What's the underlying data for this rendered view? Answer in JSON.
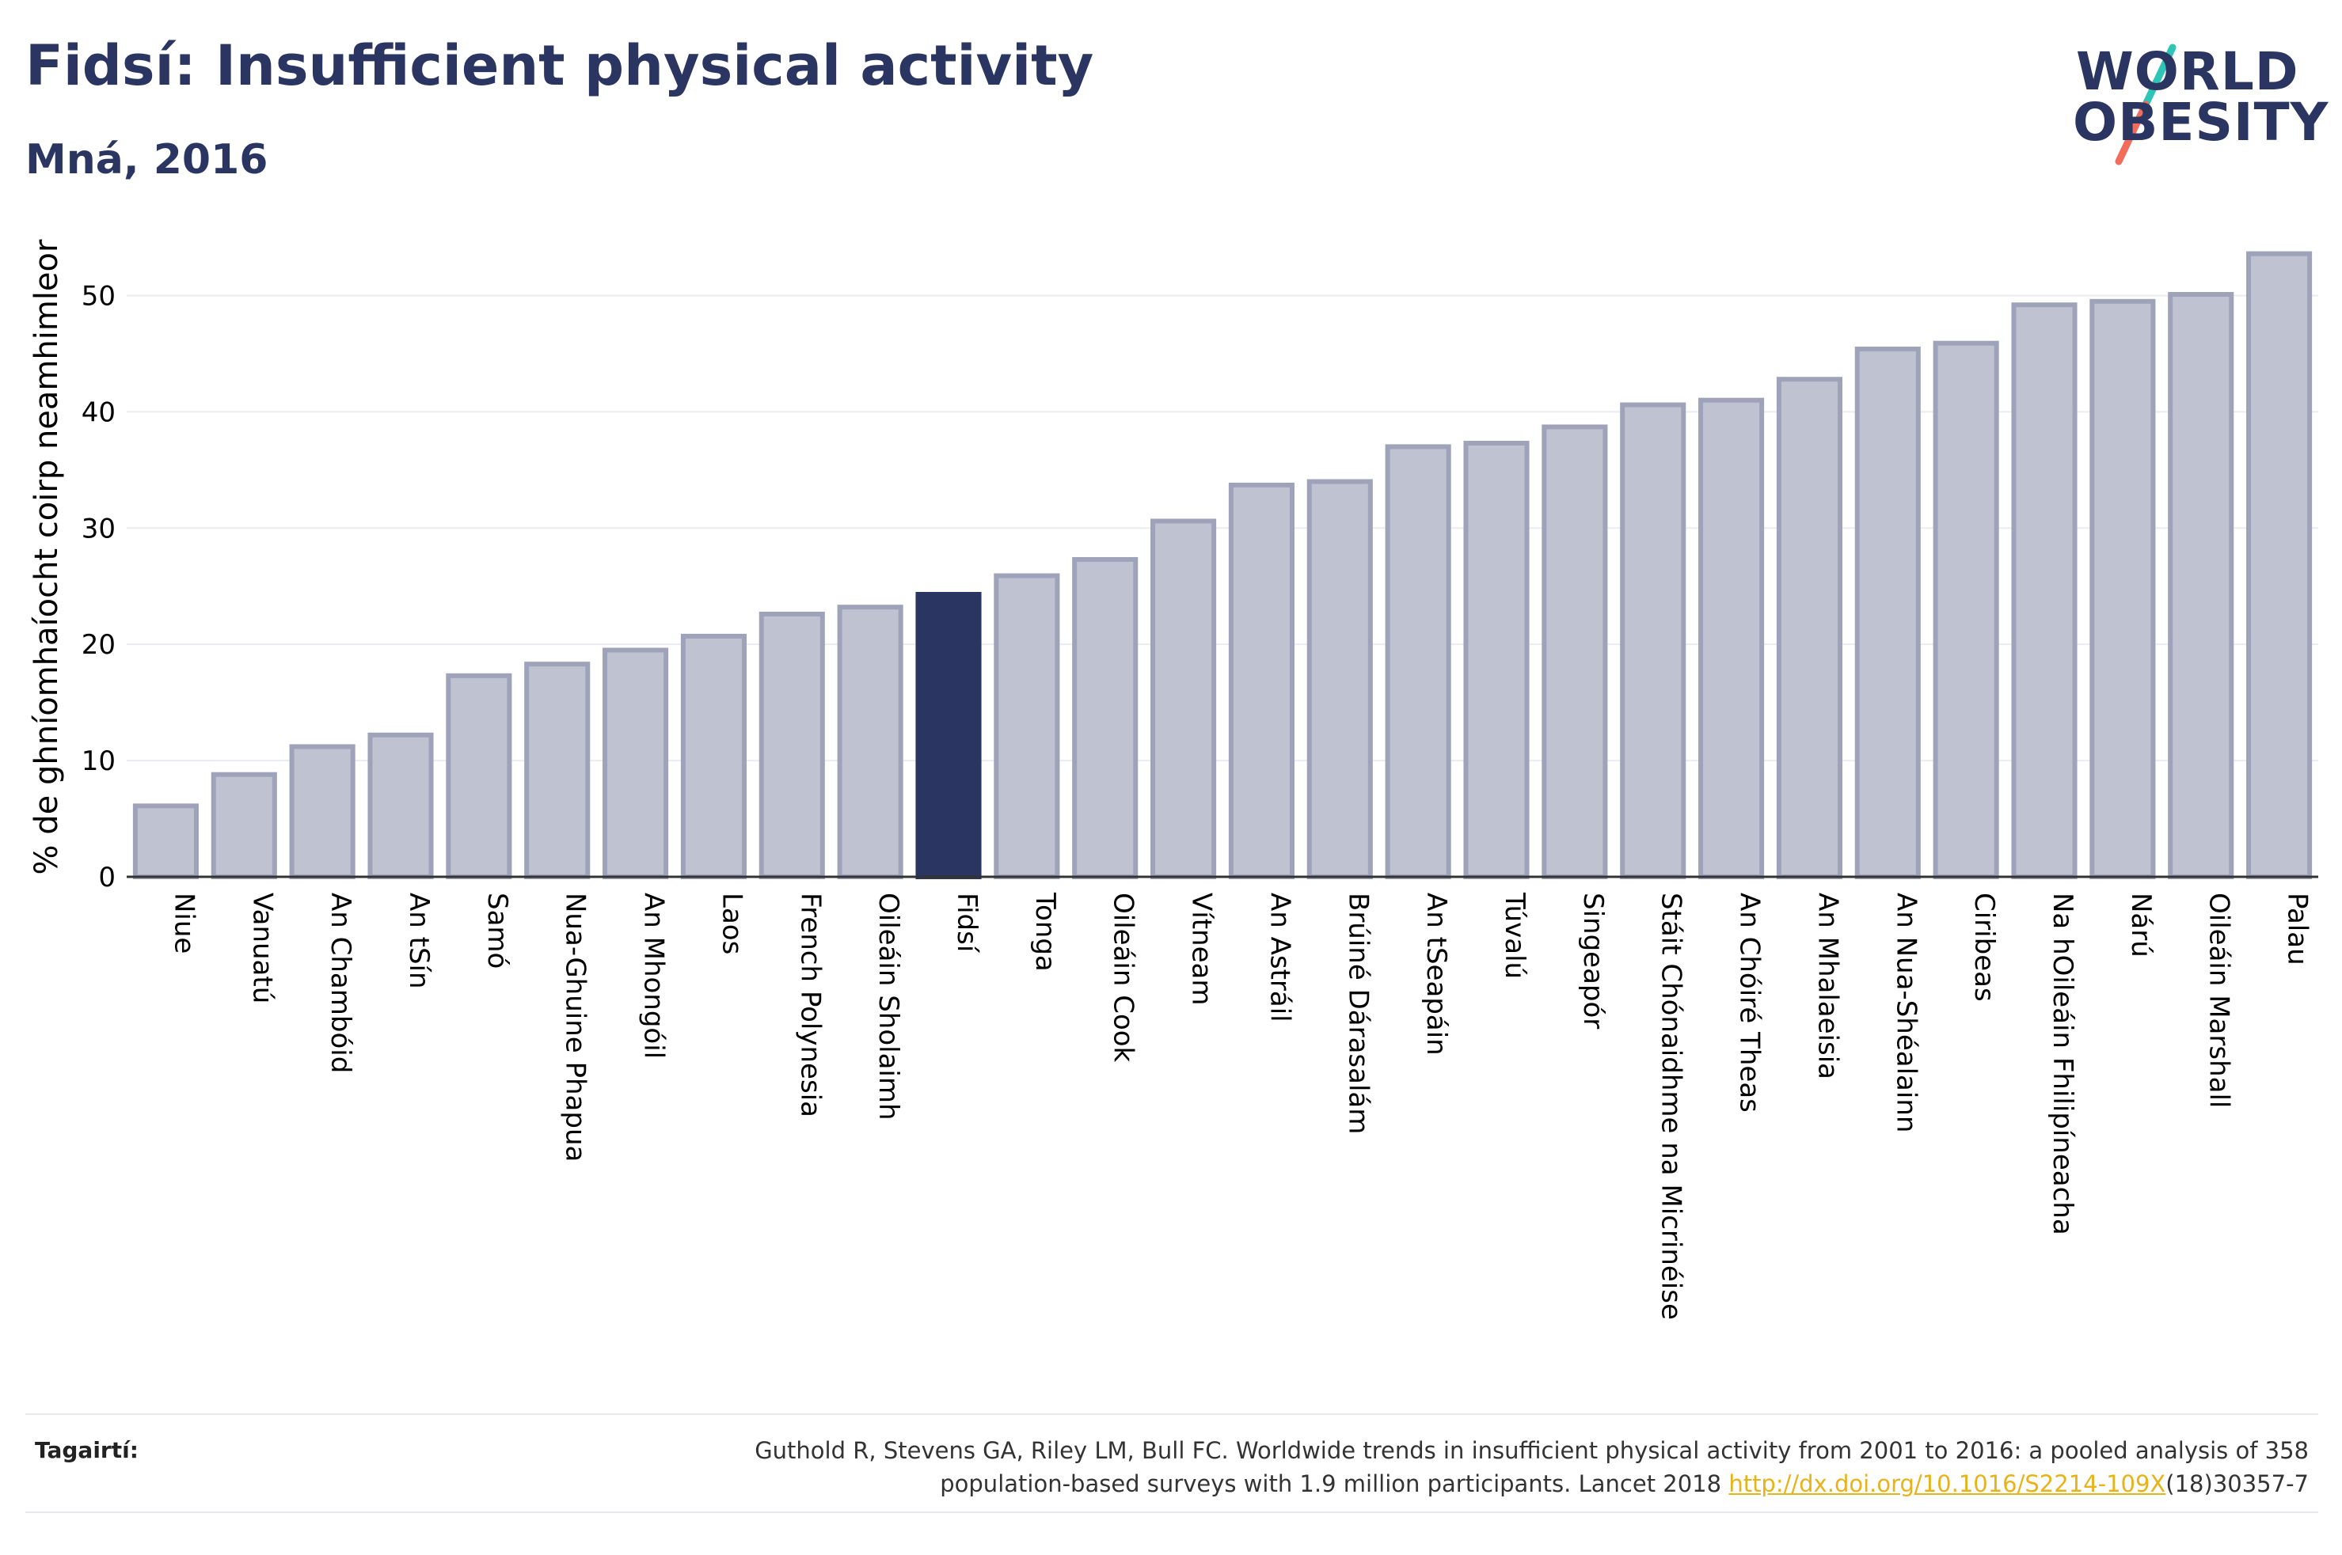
{
  "header": {
    "title": "Fidsí: Insufficient physical activity",
    "subtitle": "Mná, 2016"
  },
  "logo": {
    "line1": "WORLD",
    "line2": "OBESITY",
    "slash_colors": [
      "#2ec4b6",
      "#f26b5b"
    ]
  },
  "chart_data": {
    "type": "bar",
    "ylabel": "% de ghníomhaíocht coirp neamhimleor",
    "ylim": [
      0,
      55
    ],
    "yticks": [
      0,
      10,
      20,
      30,
      40,
      50
    ],
    "grid": true,
    "highlight": "Fidsí",
    "colors": {
      "bar": "#bfc2d0",
      "bar_edge": "#9ea3ba",
      "highlight": "#2a3561"
    },
    "categories": [
      "Niue",
      "Vanuatú",
      "An Chambóid",
      "An tSín",
      "Samó",
      "Nua-Ghuine Phapua",
      "An Mhongóil",
      "Laos",
      "French Polynesia",
      "Oileáin Sholaimh",
      "Fidsí",
      "Tonga",
      "Oileáin Cook",
      "Vítneam",
      "An Astráil",
      "Brúiné Dárasalám",
      "An tSeapáin",
      "Túvalú",
      "Singeapór",
      "Stáit Chónaidhme na Micrinéise",
      "An Chóiré Theas",
      "An Mhalaeisia",
      "An Nua-Shéalainn",
      "Ciribeas",
      "Na hOileáin Fhilipíneacha",
      "Nárú",
      "Oileáin Marshall",
      "Palau"
    ],
    "values": [
      6.1,
      8.8,
      11.2,
      12.2,
      17.3,
      18.3,
      19.5,
      20.7,
      22.6,
      23.2,
      24.3,
      25.9,
      27.3,
      30.6,
      33.7,
      34.0,
      37.0,
      37.3,
      38.7,
      40.6,
      41.0,
      42.8,
      45.4,
      45.9,
      49.2,
      49.5,
      50.1,
      53.6
    ]
  },
  "references": {
    "label": "Tagairtí:",
    "text_line1": "Guthold R, Stevens GA, Riley LM, Bull FC. Worldwide trends in insufficient physical activity from 2001 to 2016: a pooled analysis of 358",
    "text_line2_pre": "population-based surveys with 1.9 million participants. Lancet 2018 ",
    "link": "http://dx.doi.org/10.1016/S2214-109X",
    "text_line2_post": "(18)30357-7"
  }
}
